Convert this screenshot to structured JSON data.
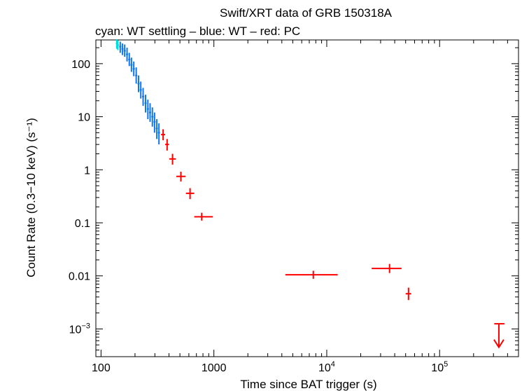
{
  "chart_data": {
    "type": "scatter",
    "title": "Swift/XRT data of GRB 150318A",
    "subtitle": "cyan: WT settling – blue: WT – red: PC",
    "xlabel": "Time since BAT trigger (s)",
    "ylabel": "Count Rate (0.3−10 keV) (s⁻¹)",
    "xscale": "log",
    "yscale": "log",
    "xlim": [
      90,
      500000
    ],
    "ylim": [
      0.0003,
      280
    ],
    "x_ticks": [
      {
        "value": 100,
        "label": "100"
      },
      {
        "value": 1000,
        "label": "1000"
      },
      {
        "value": 10000,
        "label": "10",
        "sup": "4"
      },
      {
        "value": 100000,
        "label": "10",
        "sup": "5"
      }
    ],
    "y_ticks": [
      {
        "value": 100,
        "label": "100"
      },
      {
        "value": 10,
        "label": "10"
      },
      {
        "value": 1,
        "label": "1"
      },
      {
        "value": 0.1,
        "label": "0.1"
      },
      {
        "value": 0.01,
        "label": "0.01"
      },
      {
        "value": 0.001,
        "label": "10",
        "sup": "−3"
      }
    ],
    "colors": {
      "wt_settling": "#00dddd",
      "wt": "#1177ee",
      "pc": "#ff0000",
      "axis": "#000000"
    },
    "series": [
      {
        "name": "WT settling",
        "color": "#00dddd",
        "points": [
          {
            "x": 138,
            "y": 240,
            "ylo": 190,
            "yhi": 290
          },
          {
            "x": 141,
            "y": 225,
            "ylo": 180,
            "yhi": 275
          }
        ]
      },
      {
        "name": "WT",
        "color": "#1177ee",
        "points": [
          {
            "x": 148,
            "y": 210,
            "ylo": 160,
            "yhi": 260
          },
          {
            "x": 155,
            "y": 190,
            "ylo": 145,
            "yhi": 240
          },
          {
            "x": 162,
            "y": 175,
            "ylo": 135,
            "yhi": 230
          },
          {
            "x": 170,
            "y": 150,
            "ylo": 110,
            "yhi": 200
          },
          {
            "x": 178,
            "y": 120,
            "ylo": 90,
            "yhi": 160
          },
          {
            "x": 186,
            "y": 95,
            "ylo": 70,
            "yhi": 130
          },
          {
            "x": 195,
            "y": 80,
            "ylo": 58,
            "yhi": 110
          },
          {
            "x": 205,
            "y": 60,
            "ylo": 42,
            "yhi": 85
          },
          {
            "x": 215,
            "y": 42,
            "ylo": 29,
            "yhi": 60
          },
          {
            "x": 225,
            "y": 32,
            "ylo": 22,
            "yhi": 46
          },
          {
            "x": 236,
            "y": 24,
            "ylo": 16,
            "yhi": 35
          },
          {
            "x": 248,
            "y": 18,
            "ylo": 12,
            "yhi": 26
          },
          {
            "x": 260,
            "y": 14,
            "ylo": 9,
            "yhi": 21
          },
          {
            "x": 272,
            "y": 12,
            "ylo": 8,
            "yhi": 18
          },
          {
            "x": 285,
            "y": 10,
            "ylo": 6.5,
            "yhi": 15
          },
          {
            "x": 298,
            "y": 8,
            "ylo": 5,
            "yhi": 12
          },
          {
            "x": 312,
            "y": 6,
            "ylo": 3.8,
            "yhi": 9
          },
          {
            "x": 326,
            "y": 5,
            "ylo": 3,
            "yhi": 7.5
          }
        ]
      },
      {
        "name": "PC",
        "color": "#ff0000",
        "points": [
          {
            "x": 355,
            "xlo": 340,
            "xhi": 370,
            "y": 4.6,
            "ylo": 3.6,
            "yhi": 5.8
          },
          {
            "x": 385,
            "xlo": 370,
            "xhi": 400,
            "y": 3.0,
            "ylo": 2.3,
            "yhi": 3.8
          },
          {
            "x": 430,
            "xlo": 402,
            "xhi": 460,
            "y": 1.6,
            "ylo": 1.25,
            "yhi": 2.0
          },
          {
            "x": 510,
            "xlo": 465,
            "xhi": 560,
            "y": 0.75,
            "ylo": 0.6,
            "yhi": 0.92
          },
          {
            "x": 615,
            "xlo": 565,
            "xhi": 670,
            "y": 0.36,
            "ylo": 0.28,
            "yhi": 0.45
          },
          {
            "x": 780,
            "xlo": 670,
            "xhi": 980,
            "y": 0.13,
            "ylo": 0.11,
            "yhi": 0.155
          },
          {
            "x": 7600,
            "xlo": 4300,
            "xhi": 12500,
            "y": 0.0105,
            "ylo": 0.0088,
            "yhi": 0.0125
          },
          {
            "x": 36000,
            "xlo": 25000,
            "xhi": 46000,
            "y": 0.0138,
            "ylo": 0.0113,
            "yhi": 0.0168
          },
          {
            "x": 53000,
            "xlo": 50000,
            "xhi": 56000,
            "y": 0.0046,
            "ylo": 0.0035,
            "yhi": 0.006
          }
        ]
      }
    ],
    "upper_limits": [
      {
        "x": 335000,
        "xlo": 305000,
        "xhi": 375000,
        "y": 0.00125,
        "arrow_to": 0.00045,
        "color": "#ff0000"
      }
    ]
  }
}
